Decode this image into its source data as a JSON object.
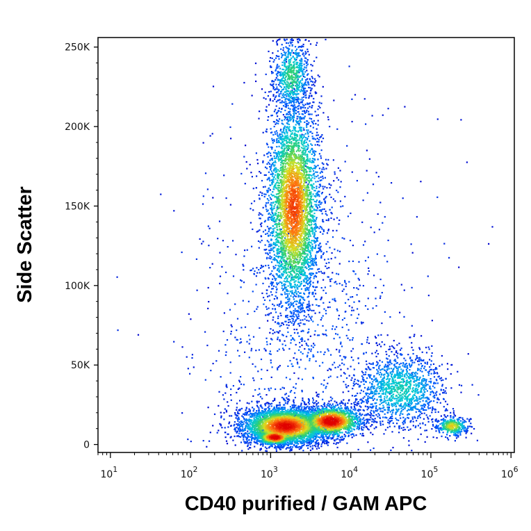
{
  "chart_data": {
    "type": "scatter",
    "subtype": "flow-cytometry density dot plot (pseudocolor)",
    "title": "",
    "xlabel": "CD40 purified / GAM APC",
    "ylabel": "Side Scatter",
    "x_scale": "log",
    "xlim": [
      7,
      1100000
    ],
    "ylim": [
      -5000,
      256000
    ],
    "x_ticks": [
      {
        "value": 10,
        "base": "10",
        "exp": "1"
      },
      {
        "value": 100,
        "base": "10",
        "exp": "2"
      },
      {
        "value": 1000,
        "base": "10",
        "exp": "3"
      },
      {
        "value": 10000,
        "base": "10",
        "exp": "4"
      },
      {
        "value": 100000,
        "base": "10",
        "exp": "5"
      },
      {
        "value": 1000000,
        "base": "10",
        "exp": "6"
      }
    ],
    "y_ticks": [
      {
        "value": 0,
        "label": "0"
      },
      {
        "value": 50000,
        "label": "50K"
      },
      {
        "value": 100000,
        "label": "100K"
      },
      {
        "value": 150000,
        "label": "150K"
      },
      {
        "value": 200000,
        "label": "200K"
      },
      {
        "value": 250000,
        "label": "250K"
      }
    ],
    "grid": false,
    "legend": "none",
    "colormap": [
      "#0000cc",
      "#0060ff",
      "#00c8e0",
      "#30d070",
      "#d8e020",
      "#ff7010",
      "#e00000"
    ],
    "populations": [
      {
        "x_center": 1900,
        "x_spread_decades": 0.17,
        "y_center": 150000,
        "y_spread": 33000,
        "count": 4200,
        "peak_density": 0.85
      },
      {
        "x_center": 1800,
        "x_spread_decades": 0.12,
        "y_center": 232000,
        "y_spread": 12000,
        "count": 700,
        "peak_density": 0.45
      },
      {
        "x_center": 1500,
        "x_spread_decades": 0.28,
        "y_center": 12000,
        "y_spread": 6000,
        "count": 3600,
        "peak_density": 0.95
      },
      {
        "x_center": 5500,
        "x_spread_decades": 0.2,
        "y_center": 15000,
        "y_spread": 5000,
        "count": 1600,
        "peak_density": 1.0
      },
      {
        "x_center": 1100,
        "x_spread_decades": 0.12,
        "y_center": 5000,
        "y_spread": 2500,
        "count": 700,
        "peak_density": 1.0
      },
      {
        "x_center": 40000,
        "x_spread_decades": 0.3,
        "y_center": 35000,
        "y_spread": 12000,
        "count": 1300,
        "peak_density": 0.35
      },
      {
        "x_center": 180000,
        "x_spread_decades": 0.1,
        "y_center": 12000,
        "y_spread": 3000,
        "count": 380,
        "peak_density": 0.65
      },
      {
        "x_center": 2500,
        "x_spread_decades": 0.6,
        "y_center": 80000,
        "y_spread": 60000,
        "count": 900,
        "peak_density": 0.12
      },
      {
        "x_center": 3000,
        "x_spread_decades": 1.0,
        "y_center": 60000,
        "y_spread": 70000,
        "count": 160,
        "peak_density": 0.05
      }
    ]
  }
}
